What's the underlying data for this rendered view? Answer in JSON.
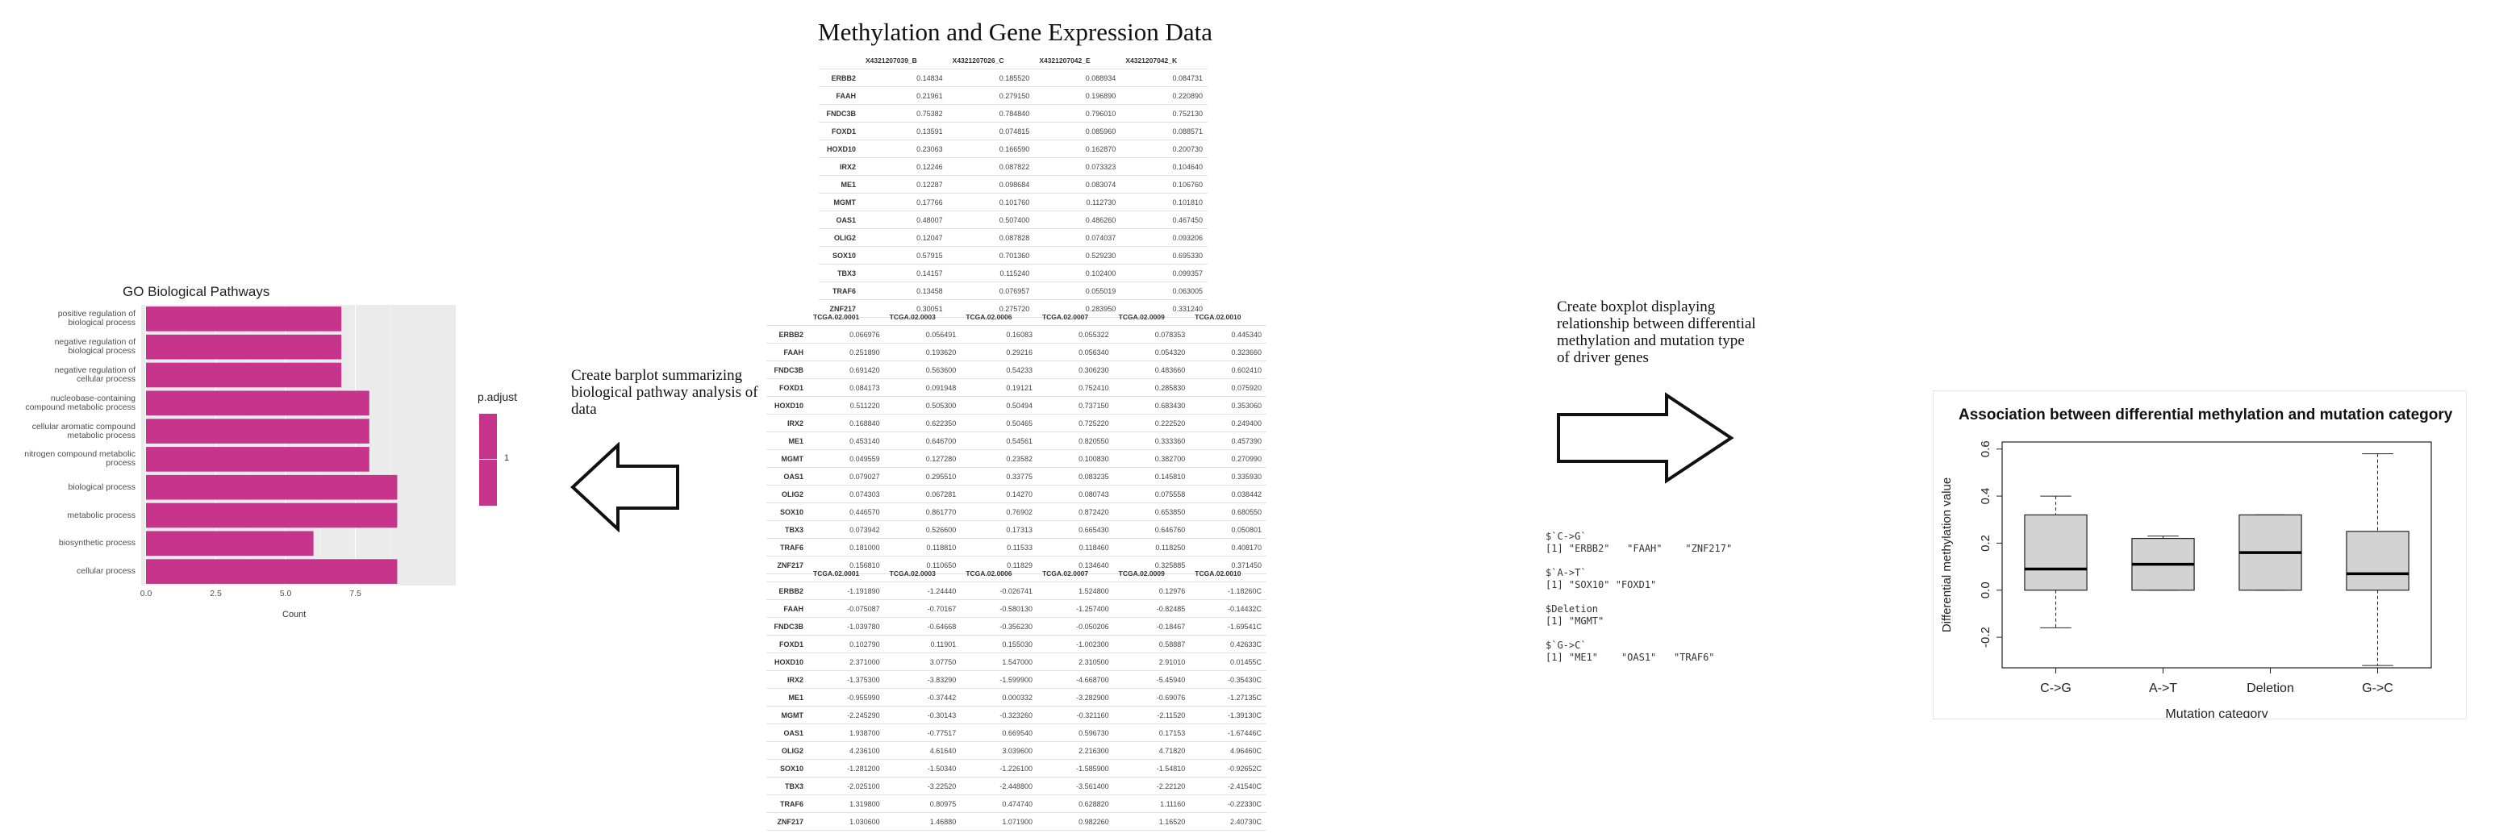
{
  "main_title": "Methylation and Gene Expression Data",
  "barplot": {
    "title": "GO Biological Pathways",
    "legend_title": "p.adjust",
    "legend_tick": "1",
    "xlabel": "Count",
    "bar_color": "#c7348c",
    "chart_data": {
      "type": "bar",
      "orientation": "horizontal",
      "categories": [
        "positive regulation of\nbiological process",
        "negative regulation of\nbiological process",
        "negative regulation of\ncellular process",
        "nucleobase-containing\ncompound metabolic process",
        "cellular aromatic compound\nmetabolic process",
        "nitrogen compound metabolic\nprocess",
        "biological process",
        "metabolic process",
        "biosynthetic process",
        "cellular process"
      ],
      "values": [
        7,
        7,
        7,
        8,
        8,
        8,
        9,
        9,
        6,
        9
      ],
      "xticks": [
        "0.0",
        "2.5",
        "5.0",
        "7.5"
      ],
      "xlim": [
        0,
        9.4
      ]
    }
  },
  "arrow_left_note": "Create barplot summarizing\nbiological pathway analysis of\ndata",
  "arrow_right_note": "Create boxplot displaying\nrelationship between differential\nmethylation and mutation type\nof driver genes",
  "table1": {
    "columns": [
      "",
      "X4321207039_B",
      "X4321207026_C",
      "X4321207042_E",
      "X4321207042_K"
    ],
    "rows": [
      [
        "ERBB2",
        "0.14834",
        "0.185520",
        "0.088934",
        "0.084731"
      ],
      [
        "FAAH",
        "0.21961",
        "0.279150",
        "0.196890",
        "0.220890"
      ],
      [
        "FNDC3B",
        "0.75382",
        "0.784840",
        "0.796010",
        "0.752130"
      ],
      [
        "FOXD1",
        "0.13591",
        "0.074815",
        "0.085960",
        "0.088571"
      ],
      [
        "HOXD10",
        "0.23063",
        "0.166590",
        "0.162870",
        "0.200730"
      ],
      [
        "IRX2",
        "0.12246",
        "0.087822",
        "0.073323",
        "0.104640"
      ],
      [
        "ME1",
        "0.12287",
        "0.098684",
        "0.083074",
        "0.106760"
      ],
      [
        "MGMT",
        "0.17766",
        "0.101760",
        "0.112730",
        "0.101810"
      ],
      [
        "OAS1",
        "0.48007",
        "0.507400",
        "0.486260",
        "0.467450"
      ],
      [
        "OLIG2",
        "0.12047",
        "0.087828",
        "0.074037",
        "0.093206"
      ],
      [
        "SOX10",
        "0.57915",
        "0.701360",
        "0.529230",
        "0.695330"
      ],
      [
        "TBX3",
        "0.14157",
        "0.115240",
        "0.102400",
        "0.099357"
      ],
      [
        "TRAF6",
        "0.13458",
        "0.076957",
        "0.055019",
        "0.063005"
      ],
      [
        "ZNF217",
        "0.30051",
        "0.275720",
        "0.283950",
        "0.331240"
      ]
    ]
  },
  "table2": {
    "columns": [
      "",
      "TCGA.02.0001",
      "TCGA.02.0003",
      "TCGA.02.0006",
      "TCGA.02.0007",
      "TCGA.02.0009",
      "TCGA.02.0010"
    ],
    "rows": [
      [
        "ERBB2",
        "0.066976",
        "0.056491",
        "0.16083",
        "0.055322",
        "0.078353",
        "0.445340"
      ],
      [
        "FAAH",
        "0.251890",
        "0.193620",
        "0.29216",
        "0.056340",
        "0.054320",
        "0.323660"
      ],
      [
        "FNDC3B",
        "0.691420",
        "0.563600",
        "0.54233",
        "0.306230",
        "0.483660",
        "0.602410"
      ],
      [
        "FOXD1",
        "0.084173",
        "0.091948",
        "0.19121",
        "0.752410",
        "0.285830",
        "0.075920"
      ],
      [
        "HOXD10",
        "0.511220",
        "0.505300",
        "0.50494",
        "0.737150",
        "0.683430",
        "0.353060"
      ],
      [
        "IRX2",
        "0.168840",
        "0.622350",
        "0.50465",
        "0.725220",
        "0.222520",
        "0.249400"
      ],
      [
        "ME1",
        "0.453140",
        "0.646700",
        "0.54561",
        "0.820550",
        "0.333360",
        "0.457390"
      ],
      [
        "MGMT",
        "0.049559",
        "0.127280",
        "0.23582",
        "0.100830",
        "0.382700",
        "0.270990"
      ],
      [
        "OAS1",
        "0.079027",
        "0.295510",
        "0.33775",
        "0.083235",
        "0.145810",
        "0.335930"
      ],
      [
        "OLIG2",
        "0.074303",
        "0.067281",
        "0.14270",
        "0.080743",
        "0.075558",
        "0.038442"
      ],
      [
        "SOX10",
        "0.446570",
        "0.861770",
        "0.76902",
        "0.872420",
        "0.653850",
        "0.680550"
      ],
      [
        "TBX3",
        "0.073942",
        "0.526600",
        "0.17313",
        "0.665430",
        "0.646760",
        "0.050801"
      ],
      [
        "TRAF6",
        "0.181000",
        "0.118810",
        "0.11533",
        "0.118460",
        "0.118250",
        "0.408170"
      ],
      [
        "ZNF217",
        "0.156810",
        "0.110650",
        "0.11829",
        "0.134640",
        "0.325885",
        "0.371450"
      ]
    ]
  },
  "table3": {
    "columns": [
      "",
      "TCGA.02.0001",
      "TCGA.02.0003",
      "TCGA.02.0006",
      "TCGA.02.0007",
      "TCGA.02.0009",
      "TCGA.02.0010"
    ],
    "rows": [
      [
        "ERBB2",
        "-1.191890",
        "-1.24440",
        "-0.026741",
        "1.524800",
        "0.12976",
        "-1.18260C"
      ],
      [
        "FAAH",
        "-0.075087",
        "-0.70167",
        "-0.580130",
        "-1.257400",
        "-0.82485",
        "-0.14432C"
      ],
      [
        "FNDC3B",
        "-1.039780",
        "-0.64668",
        "-0.356230",
        "-0.050206",
        "-0.18467",
        "-1.69541C"
      ],
      [
        "FOXD1",
        "0.102790",
        "0.11901",
        "0.155030",
        "-1.002300",
        "0.58887",
        "0.42633C"
      ],
      [
        "HOXD10",
        "2.371000",
        "3.07750",
        "1.547000",
        "2.310500",
        "2.91010",
        "0.01455C"
      ],
      [
        "IRX2",
        "-1.375300",
        "-3.83290",
        "-1.599900",
        "-4.668700",
        "-5.45940",
        "-0.35430C"
      ],
      [
        "ME1",
        "-0.955990",
        "-0.37442",
        "0.000332",
        "-3.282900",
        "-0.69076",
        "-1.27135C"
      ],
      [
        "MGMT",
        "-2.245290",
        "-0.30143",
        "-0.323260",
        "-0.321160",
        "-2.11520",
        "-1.39130C"
      ],
      [
        "OAS1",
        "1.938700",
        "-0.77517",
        "0.669540",
        "0.596730",
        "0.17153",
        "-1.67446C"
      ],
      [
        "OLIG2",
        "4.236100",
        "4.61640",
        "3.039600",
        "2.216300",
        "4.71820",
        "4.96460C"
      ],
      [
        "SOX10",
        "-1.281200",
        "-1.50340",
        "-1.226100",
        "-1.585900",
        "-1.54810",
        "-0.92652C"
      ],
      [
        "TBX3",
        "-2.025100",
        "-3.22520",
        "-2.448800",
        "-3.561400",
        "-2.22120",
        "-2.41540C"
      ],
      [
        "TRAF6",
        "1.319800",
        "0.80975",
        "0.474740",
        "0.628820",
        "1.11160",
        "-0.22330C"
      ],
      [
        "ZNF217",
        "1.030600",
        "1.46880",
        "1.071900",
        "0.982260",
        "1.16520",
        "2.40730C"
      ]
    ]
  },
  "console": [
    "$`C->G`",
    "[1] \"ERBB2\"   \"FAAH\"    \"ZNF217\"",
    "",
    "$`A->T`",
    "[1] \"SOX10\" \"FOXD1\"",
    "",
    "$Deletion",
    "[1] \"MGMT\"",
    "",
    "$`G->C`",
    "[1] \"ME1\"    \"OAS1\"   \"TRAF6\""
  ],
  "boxplot": {
    "title": "Association between differential methylation and mutation category",
    "xlabel": "Mutation category",
    "ylabel": "Differential methylation value",
    "box_fill": "#d3d3d3",
    "chart_data": {
      "type": "box",
      "categories": [
        "C->G",
        "A->T",
        "Deletion",
        "G->C"
      ],
      "yticks": [
        "-0.2",
        "0.0",
        "0.2",
        "0.4",
        "0.6"
      ],
      "ylim": [
        -0.33,
        0.63
      ],
      "boxes": [
        {
          "whisker_low": -0.16,
          "q1": 0.0,
          "median": 0.09,
          "q3": 0.32,
          "whisker_high": 0.4
        },
        {
          "whisker_low": 0.0,
          "q1": 0.0,
          "median": 0.11,
          "q3": 0.22,
          "whisker_high": 0.23
        },
        {
          "whisker_low": 0.0,
          "q1": 0.0,
          "median": 0.16,
          "q3": 0.32,
          "whisker_high": 0.32
        },
        {
          "whisker_low": -0.32,
          "q1": 0.0,
          "median": 0.07,
          "q3": 0.25,
          "whisker_high": 0.58
        }
      ]
    }
  }
}
